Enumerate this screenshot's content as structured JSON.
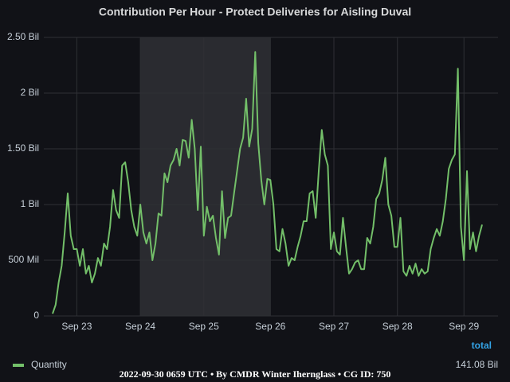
{
  "chart_data": {
    "type": "line",
    "title": "Contribution Per Hour - Protect Deliveries for Aisling Duval",
    "categories": [
      null,
      null,
      null,
      null,
      null,
      null,
      null,
      null,
      "Sep 23",
      null,
      null,
      null,
      null,
      null,
      null,
      null,
      null,
      null,
      null,
      null,
      null,
      null,
      null,
      null,
      null,
      null,
      null,
      null,
      null,
      "Sep 24",
      null,
      null,
      null,
      null,
      null,
      null,
      null,
      null,
      null,
      null,
      null,
      null,
      null,
      null,
      null,
      null,
      null,
      null,
      null,
      null,
      "Sep 25",
      null,
      null,
      null,
      null,
      null,
      null,
      null,
      null,
      null,
      null,
      null,
      null,
      null,
      null,
      null,
      null,
      null,
      null,
      null,
      null,
      null,
      "Sep 26",
      null,
      null,
      null,
      null,
      null,
      null,
      null,
      null,
      null,
      null,
      null,
      null,
      null,
      null,
      null,
      null,
      null,
      null,
      null,
      null,
      "Sep 27",
      null,
      null,
      null,
      null,
      null,
      null,
      null,
      null,
      null,
      null,
      null,
      null,
      null,
      null,
      null,
      null,
      null,
      null,
      null,
      null,
      "Sep 28",
      null,
      null,
      null,
      null,
      null,
      null,
      null,
      null,
      null,
      null,
      null,
      null,
      null,
      null,
      null,
      null,
      null,
      null,
      null,
      null,
      null,
      "Sep 29",
      null,
      null,
      null,
      null,
      null,
      null
    ],
    "series": [
      {
        "name": "Quantity",
        "color": "#73bf69",
        "values": [
          0.02,
          0.1,
          0.3,
          0.45,
          0.75,
          1.1,
          0.72,
          0.6,
          0.6,
          0.45,
          0.6,
          0.38,
          0.45,
          0.3,
          0.38,
          0.52,
          0.45,
          0.65,
          0.6,
          0.8,
          1.13,
          0.95,
          0.88,
          1.35,
          1.38,
          1.2,
          0.95,
          0.8,
          0.72,
          1.0,
          0.75,
          0.65,
          0.75,
          0.5,
          0.65,
          0.92,
          0.9,
          1.28,
          1.2,
          1.35,
          1.4,
          1.5,
          1.35,
          1.58,
          1.57,
          1.42,
          1.76,
          1.5,
          0.95,
          1.52,
          0.72,
          0.98,
          0.85,
          0.9,
          0.7,
          0.55,
          1.12,
          0.7,
          0.88,
          0.9,
          1.1,
          1.3,
          1.5,
          1.6,
          1.95,
          1.52,
          1.68,
          2.37,
          1.55,
          1.22,
          1.0,
          1.23,
          1.22,
          1.0,
          0.6,
          0.58,
          0.78,
          0.65,
          0.45,
          0.52,
          0.5,
          0.62,
          0.72,
          0.85,
          0.85,
          1.1,
          1.12,
          0.88,
          1.3,
          1.67,
          1.45,
          1.35,
          0.6,
          0.75,
          0.58,
          0.55,
          0.88,
          0.62,
          0.38,
          0.42,
          0.48,
          0.5,
          0.42,
          0.42,
          0.7,
          0.65,
          0.8,
          1.05,
          1.1,
          1.22,
          1.42,
          1.0,
          0.9,
          0.62,
          0.62,
          0.88,
          0.4,
          0.36,
          0.45,
          0.38,
          0.47,
          0.36,
          0.42,
          0.38,
          0.4,
          0.6,
          0.7,
          0.78,
          0.72,
          0.85,
          1.05,
          1.32,
          1.4,
          1.45,
          2.22,
          0.8,
          0.5,
          1.3,
          0.6,
          0.75,
          0.58,
          0.72,
          0.82
        ]
      }
    ],
    "ylim": [
      0,
      2.5
    ],
    "yticks": [
      0,
      {
        "value": 0.5,
        "label": "500 Mil"
      },
      {
        "value": 1,
        "label": "1 Bil"
      },
      {
        "value": 1.5,
        "label": "1.50 Bil"
      },
      {
        "value": 2,
        "label": "2 Bil"
      },
      {
        "value": 2.5,
        "label": "2.50 Bil"
      }
    ],
    "grid": true,
    "legend": {
      "position": "bottom",
      "total_header": "total",
      "total_value": "141.08 Bil"
    },
    "footer": "2022-09-30 0659 UTC • By CMDR Winter Ihernglass • CG ID: 750"
  }
}
